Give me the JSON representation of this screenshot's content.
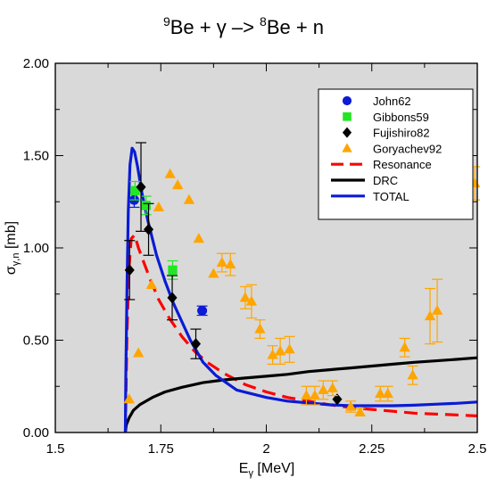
{
  "title": {
    "mass1": "9",
    "text1": "Be + γ –> ",
    "mass2": "8",
    "text2": "Be + n"
  },
  "xlabel": {
    "main": "E",
    "sub": "γ",
    "rest": " [MeV]"
  },
  "ylabel": {
    "main": "σ",
    "sub": "γ,n",
    "rest": " [mb]"
  },
  "colors": {
    "plot_bg": "#d9d9d9",
    "john62": "#0b1bd6",
    "gibbons59": "#22e622",
    "fujishiro82": "#000000",
    "goryachev92": "#ffa500",
    "resonance": "#ff0000",
    "drc": "#000000",
    "total": "#0b1bd6"
  },
  "chart_data": {
    "type": "scatter",
    "xlim": [
      1.5,
      2.5
    ],
    "ylim": [
      0.0,
      2.0
    ],
    "x_ticks": [
      {
        "v": 1.5,
        "label": "1.5"
      },
      {
        "v": 1.75,
        "label": "1.75"
      },
      {
        "v": 2.0,
        "label": "2"
      },
      {
        "v": 2.25,
        "label": "2.25"
      },
      {
        "v": 2.5,
        "label": "2.5"
      }
    ],
    "y_ticks": [
      {
        "v": 0.0,
        "label": "0.00"
      },
      {
        "v": 0.5,
        "label": "0.50"
      },
      {
        "v": 1.0,
        "label": "1.00"
      },
      {
        "v": 1.5,
        "label": "1.50"
      },
      {
        "v": 2.0,
        "label": "2.00"
      }
    ],
    "legend_position": "top-right",
    "series": [
      {
        "name": "John62",
        "kind": "points",
        "marker": "circle",
        "color": "#0b1bd6",
        "points": [
          {
            "x": 1.687,
            "y": 1.26,
            "err": 0.04
          },
          {
            "x": 1.848,
            "y": 0.66,
            "err": 0.025
          }
        ]
      },
      {
        "name": "Gibbons59",
        "kind": "points",
        "marker": "square",
        "color": "#22e622",
        "points": [
          {
            "x": 1.689,
            "y": 1.31,
            "err": 0.05
          },
          {
            "x": 1.715,
            "y": 1.23,
            "err": 0.05
          },
          {
            "x": 1.778,
            "y": 0.88,
            "err": 0.05
          }
        ]
      },
      {
        "name": "Fujishiro82",
        "kind": "points",
        "marker": "diamond",
        "color": "#000000",
        "points": [
          {
            "x": 1.676,
            "y": 0.88,
            "err": 0.16
          },
          {
            "x": 1.703,
            "y": 1.33,
            "err": 0.24
          },
          {
            "x": 1.721,
            "y": 1.1,
            "err": 0.14
          },
          {
            "x": 1.777,
            "y": 0.73,
            "err": 0.12
          },
          {
            "x": 1.833,
            "y": 0.48,
            "err": 0.08
          },
          {
            "x": 2.168,
            "y": 0.18,
            "err": 0.0
          }
        ]
      },
      {
        "name": "Goryachev92",
        "kind": "points",
        "marker": "triangle",
        "color": "#ffa500",
        "points": [
          {
            "x": 1.675,
            "y": 0.18,
            "err": 0.0
          },
          {
            "x": 1.697,
            "y": 0.43,
            "err": 0.0
          },
          {
            "x": 1.728,
            "y": 0.8,
            "err": 0.0
          },
          {
            "x": 1.745,
            "y": 1.22,
            "err": 0.0
          },
          {
            "x": 1.772,
            "y": 1.4,
            "err": 0.0
          },
          {
            "x": 1.79,
            "y": 1.34,
            "err": 0.0
          },
          {
            "x": 1.817,
            "y": 1.26,
            "err": 0.0
          },
          {
            "x": 1.84,
            "y": 1.05,
            "err": 0.0
          },
          {
            "x": 1.875,
            "y": 0.86,
            "err": 0.0
          },
          {
            "x": 1.895,
            "y": 0.92,
            "err": 0.05
          },
          {
            "x": 1.915,
            "y": 0.91,
            "err": 0.06
          },
          {
            "x": 1.95,
            "y": 0.73,
            "err": 0.06
          },
          {
            "x": 1.965,
            "y": 0.71,
            "err": 0.09
          },
          {
            "x": 1.985,
            "y": 0.56,
            "err": 0.05
          },
          {
            "x": 2.015,
            "y": 0.42,
            "err": 0.05
          },
          {
            "x": 2.033,
            "y": 0.44,
            "err": 0.07
          },
          {
            "x": 2.055,
            "y": 0.45,
            "err": 0.07
          },
          {
            "x": 2.095,
            "y": 0.2,
            "err": 0.05
          },
          {
            "x": 2.115,
            "y": 0.2,
            "err": 0.05
          },
          {
            "x": 2.135,
            "y": 0.23,
            "err": 0.05
          },
          {
            "x": 2.157,
            "y": 0.24,
            "err": 0.04
          },
          {
            "x": 2.2,
            "y": 0.14,
            "err": 0.03
          },
          {
            "x": 2.222,
            "y": 0.11,
            "err": 0.02
          },
          {
            "x": 2.27,
            "y": 0.21,
            "err": 0.04
          },
          {
            "x": 2.288,
            "y": 0.21,
            "err": 0.04
          },
          {
            "x": 2.328,
            "y": 0.46,
            "err": 0.05
          },
          {
            "x": 2.347,
            "y": 0.31,
            "err": 0.05
          },
          {
            "x": 2.388,
            "y": 0.63,
            "err": 0.15
          },
          {
            "x": 2.405,
            "y": 0.66,
            "err": 0.17
          },
          {
            "x": 2.453,
            "y": 1.43,
            "err": 0.1
          },
          {
            "x": 2.475,
            "y": 1.4,
            "err": 0.11
          },
          {
            "x": 2.494,
            "y": 1.35,
            "err": 0.09
          }
        ]
      },
      {
        "name": "Resonance",
        "kind": "line",
        "dash": true,
        "color": "#ff0000",
        "points": [
          [
            1.666,
            0.0
          ],
          [
            1.67,
            0.55
          ],
          [
            1.675,
            0.9
          ],
          [
            1.68,
            1.05
          ],
          [
            1.688,
            1.07
          ],
          [
            1.697,
            1.0
          ],
          [
            1.71,
            0.92
          ],
          [
            1.725,
            0.83
          ],
          [
            1.745,
            0.72
          ],
          [
            1.77,
            0.62
          ],
          [
            1.8,
            0.52
          ],
          [
            1.83,
            0.44
          ],
          [
            1.86,
            0.38
          ],
          [
            1.9,
            0.32
          ],
          [
            1.95,
            0.26
          ],
          [
            2.0,
            0.22
          ],
          [
            2.05,
            0.19
          ],
          [
            2.1,
            0.17
          ],
          [
            2.15,
            0.15
          ],
          [
            2.2,
            0.135
          ],
          [
            2.25,
            0.125
          ],
          [
            2.3,
            0.115
          ],
          [
            2.35,
            0.105
          ],
          [
            2.4,
            0.1
          ],
          [
            2.45,
            0.095
          ],
          [
            2.5,
            0.09
          ]
        ]
      },
      {
        "name": "DRC",
        "kind": "line",
        "dash": false,
        "color": "#000000",
        "points": [
          [
            1.666,
            0.0
          ],
          [
            1.668,
            0.04
          ],
          [
            1.675,
            0.08
          ],
          [
            1.685,
            0.12
          ],
          [
            1.7,
            0.15
          ],
          [
            1.73,
            0.19
          ],
          [
            1.76,
            0.22
          ],
          [
            1.8,
            0.245
          ],
          [
            1.85,
            0.27
          ],
          [
            1.9,
            0.285
          ],
          [
            1.95,
            0.295
          ],
          [
            2.0,
            0.305
          ],
          [
            2.05,
            0.315
          ],
          [
            2.1,
            0.33
          ],
          [
            2.15,
            0.34
          ],
          [
            2.2,
            0.35
          ],
          [
            2.25,
            0.36
          ],
          [
            2.3,
            0.37
          ],
          [
            2.35,
            0.38
          ],
          [
            2.4,
            0.388
          ],
          [
            2.45,
            0.396
          ],
          [
            2.5,
            0.405
          ]
        ]
      },
      {
        "name": "TOTAL",
        "kind": "line",
        "dash": false,
        "color": "#0b1bd6",
        "points": [
          [
            1.666,
            0.0
          ],
          [
            1.667,
            0.3
          ],
          [
            1.67,
            0.8
          ],
          [
            1.673,
            1.2
          ],
          [
            1.677,
            1.45
          ],
          [
            1.682,
            1.54
          ],
          [
            1.688,
            1.52
          ],
          [
            1.695,
            1.44
          ],
          [
            1.705,
            1.3
          ],
          [
            1.72,
            1.14
          ],
          [
            1.74,
            0.96
          ],
          [
            1.76,
            0.82
          ],
          [
            1.78,
            0.7
          ],
          [
            1.8,
            0.6
          ],
          [
            1.82,
            0.5
          ],
          [
            1.85,
            0.38
          ],
          [
            1.88,
            0.31
          ],
          [
            1.93,
            0.23
          ],
          [
            2.0,
            0.19
          ],
          [
            2.05,
            0.17
          ],
          [
            2.1,
            0.16
          ],
          [
            2.15,
            0.15
          ],
          [
            2.2,
            0.145
          ],
          [
            2.25,
            0.145
          ],
          [
            2.3,
            0.145
          ],
          [
            2.35,
            0.148
          ],
          [
            2.4,
            0.153
          ],
          [
            2.45,
            0.158
          ],
          [
            2.5,
            0.165
          ]
        ]
      }
    ]
  }
}
